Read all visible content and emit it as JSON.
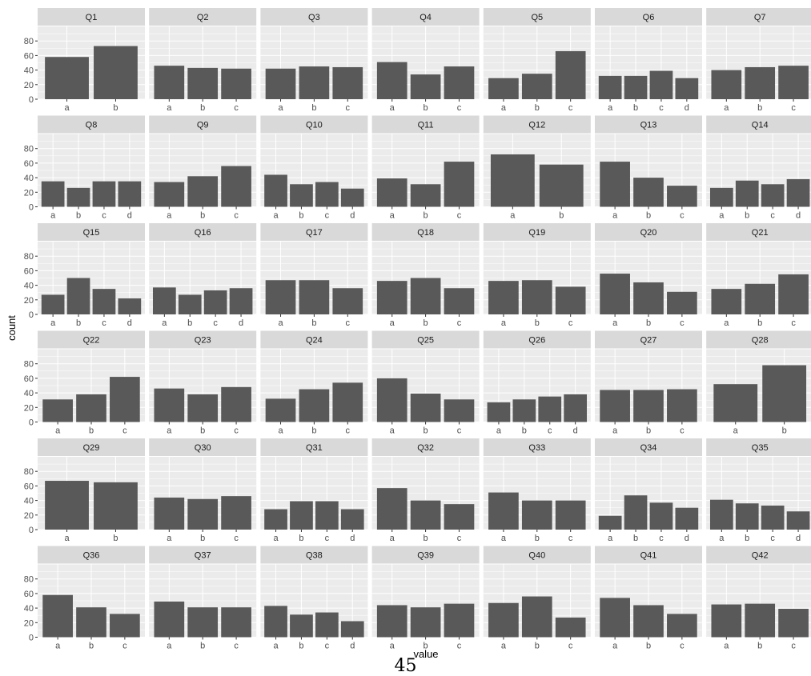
{
  "page_number": "45",
  "colors": {
    "panel_bg": "#ebebeb",
    "strip_bg": "#d9d9d9",
    "bar": "#595959",
    "grid": "#ffffff",
    "text": "#4d4d4d",
    "strip_text": "#1a1a1a"
  },
  "chart_data": {
    "type": "bar",
    "layout": "facet_wrap",
    "ncol": 7,
    "xlabel": "value",
    "ylabel": "count",
    "ylim": [
      0,
      100
    ],
    "yticks": [
      0,
      20,
      40,
      60,
      80
    ],
    "grid": true,
    "panels": [
      {
        "title": "Q1",
        "categories": [
          "a",
          "b"
        ],
        "values": [
          58,
          73
        ]
      },
      {
        "title": "Q2",
        "categories": [
          "a",
          "b",
          "c"
        ],
        "values": [
          46,
          43,
          42
        ]
      },
      {
        "title": "Q3",
        "categories": [
          "a",
          "b",
          "c"
        ],
        "values": [
          42,
          45,
          44
        ]
      },
      {
        "title": "Q4",
        "categories": [
          "a",
          "b",
          "c"
        ],
        "values": [
          51,
          34,
          45
        ]
      },
      {
        "title": "Q5",
        "categories": [
          "a",
          "b",
          "c"
        ],
        "values": [
          29,
          35,
          66
        ]
      },
      {
        "title": "Q6",
        "categories": [
          "a",
          "b",
          "c",
          "d"
        ],
        "values": [
          32,
          32,
          39,
          29
        ]
      },
      {
        "title": "Q7",
        "categories": [
          "a",
          "b",
          "c"
        ],
        "values": [
          40,
          44,
          46
        ]
      },
      {
        "title": "Q8",
        "categories": [
          "a",
          "b",
          "c",
          "d"
        ],
        "values": [
          35,
          26,
          35,
          35
        ]
      },
      {
        "title": "Q9",
        "categories": [
          "a",
          "b",
          "c"
        ],
        "values": [
          34,
          42,
          56
        ]
      },
      {
        "title": "Q10",
        "categories": [
          "a",
          "b",
          "c",
          "d"
        ],
        "values": [
          44,
          31,
          34,
          25
        ]
      },
      {
        "title": "Q11",
        "categories": [
          "a",
          "b",
          "c"
        ],
        "values": [
          39,
          31,
          62
        ]
      },
      {
        "title": "Q12",
        "categories": [
          "a",
          "b"
        ],
        "values": [
          72,
          58
        ]
      },
      {
        "title": "Q13",
        "categories": [
          "a",
          "b",
          "c"
        ],
        "values": [
          62,
          40,
          29
        ]
      },
      {
        "title": "Q14",
        "categories": [
          "a",
          "b",
          "c",
          "d"
        ],
        "values": [
          26,
          36,
          31,
          38
        ]
      },
      {
        "title": "Q15",
        "categories": [
          "a",
          "b",
          "c",
          "d"
        ],
        "values": [
          27,
          50,
          35,
          22
        ]
      },
      {
        "title": "Q16",
        "categories": [
          "a",
          "b",
          "c",
          "d"
        ],
        "values": [
          37,
          27,
          33,
          36
        ]
      },
      {
        "title": "Q17",
        "categories": [
          "a",
          "b",
          "c"
        ],
        "values": [
          47,
          47,
          36
        ]
      },
      {
        "title": "Q18",
        "categories": [
          "a",
          "b",
          "c"
        ],
        "values": [
          46,
          50,
          36
        ]
      },
      {
        "title": "Q19",
        "categories": [
          "a",
          "b",
          "c"
        ],
        "values": [
          46,
          47,
          38
        ]
      },
      {
        "title": "Q20",
        "categories": [
          "a",
          "b",
          "c"
        ],
        "values": [
          56,
          44,
          31
        ]
      },
      {
        "title": "Q21",
        "categories": [
          "a",
          "b",
          "c"
        ],
        "values": [
          35,
          42,
          55
        ]
      },
      {
        "title": "Q22",
        "categories": [
          "a",
          "b",
          "c"
        ],
        "values": [
          31,
          38,
          62
        ]
      },
      {
        "title": "Q23",
        "categories": [
          "a",
          "b",
          "c"
        ],
        "values": [
          46,
          38,
          48
        ]
      },
      {
        "title": "Q24",
        "categories": [
          "a",
          "b",
          "c"
        ],
        "values": [
          32,
          45,
          54
        ]
      },
      {
        "title": "Q25",
        "categories": [
          "a",
          "b",
          "c"
        ],
        "values": [
          60,
          39,
          31
        ]
      },
      {
        "title": "Q26",
        "categories": [
          "a",
          "b",
          "c",
          "d"
        ],
        "values": [
          27,
          31,
          35,
          38
        ]
      },
      {
        "title": "Q27",
        "categories": [
          "a",
          "b",
          "c"
        ],
        "values": [
          44,
          44,
          45
        ]
      },
      {
        "title": "Q28",
        "categories": [
          "a",
          "b"
        ],
        "values": [
          52,
          78
        ]
      },
      {
        "title": "Q29",
        "categories": [
          "a",
          "b"
        ],
        "values": [
          67,
          65
        ]
      },
      {
        "title": "Q30",
        "categories": [
          "a",
          "b",
          "c"
        ],
        "values": [
          44,
          42,
          46
        ]
      },
      {
        "title": "Q31",
        "categories": [
          "a",
          "b",
          "c",
          "d"
        ],
        "values": [
          28,
          39,
          39,
          28
        ]
      },
      {
        "title": "Q32",
        "categories": [
          "a",
          "b",
          "c"
        ],
        "values": [
          57,
          40,
          35
        ]
      },
      {
        "title": "Q33",
        "categories": [
          "a",
          "b",
          "c"
        ],
        "values": [
          51,
          40,
          40
        ]
      },
      {
        "title": "Q34",
        "categories": [
          "a",
          "b",
          "c",
          "d"
        ],
        "values": [
          19,
          47,
          37,
          30
        ]
      },
      {
        "title": "Q35",
        "categories": [
          "a",
          "b",
          "c",
          "d"
        ],
        "values": [
          41,
          36,
          33,
          25
        ]
      },
      {
        "title": "Q36",
        "categories": [
          "a",
          "b",
          "c"
        ],
        "values": [
          58,
          41,
          32
        ]
      },
      {
        "title": "Q37",
        "categories": [
          "a",
          "b",
          "c"
        ],
        "values": [
          49,
          41,
          41
        ]
      },
      {
        "title": "Q38",
        "categories": [
          "a",
          "b",
          "c",
          "d"
        ],
        "values": [
          43,
          31,
          34,
          22
        ]
      },
      {
        "title": "Q39",
        "categories": [
          "a",
          "b",
          "c"
        ],
        "values": [
          44,
          41,
          46
        ]
      },
      {
        "title": "Q40",
        "categories": [
          "a",
          "b",
          "c"
        ],
        "values": [
          47,
          56,
          27
        ]
      },
      {
        "title": "Q41",
        "categories": [
          "a",
          "b",
          "c"
        ],
        "values": [
          54,
          44,
          32
        ]
      },
      {
        "title": "Q42",
        "categories": [
          "a",
          "b",
          "c"
        ],
        "values": [
          45,
          46,
          39
        ]
      }
    ]
  }
}
